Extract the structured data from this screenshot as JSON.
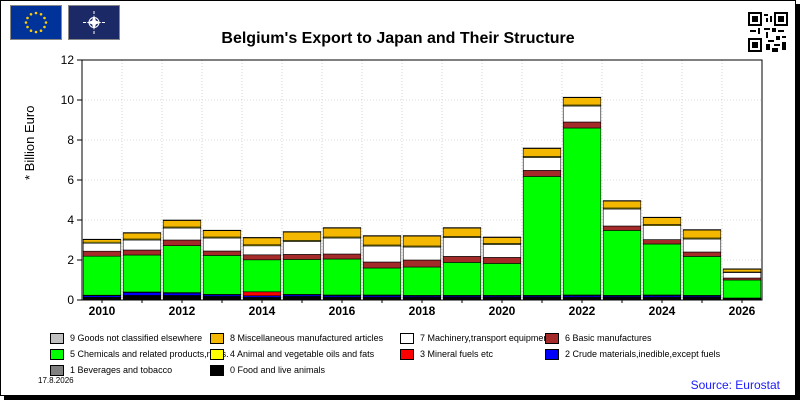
{
  "header": {
    "title": "Belgium's Export to Japan and Their Structure",
    "source": "Source: Eurostat",
    "date": "17.8.2026"
  },
  "colors": {
    "frame": "#000000",
    "eu_flag": "#003399",
    "nato_flag": "#1b2a66",
    "source_text": "#1a1aff"
  },
  "chart_data": {
    "type": "bar",
    "stacked": true,
    "title": "Belgium's Export to Japan and Their Structure",
    "ylabel": "* Billion Euro",
    "xlabel": "",
    "ylim": [
      0,
      12
    ],
    "yticks": [
      0,
      2,
      4,
      6,
      8,
      10,
      12
    ],
    "grid": true,
    "legend_position": "bottom",
    "categories": [
      "2010",
      "2011",
      "2012",
      "2013",
      "2014",
      "2015",
      "2016",
      "2017",
      "2018",
      "2019",
      "2020",
      "2021",
      "2022",
      "2023",
      "2024",
      "2025",
      "2026"
    ],
    "xtick_labels": [
      "2010",
      "",
      "2012",
      "",
      "2014",
      "",
      "2016",
      "",
      "2018",
      "",
      "2020",
      "",
      "2022",
      "",
      "2024",
      "",
      "2026"
    ],
    "series": [
      {
        "name": "0 Food and live animals",
        "color": "#000000",
        "values": [
          0.12,
          0.2,
          0.2,
          0.15,
          0.1,
          0.15,
          0.12,
          0.12,
          0.12,
          0.12,
          0.12,
          0.12,
          0.12,
          0.12,
          0.12,
          0.12,
          0.06
        ]
      },
      {
        "name": "1 Beverages and tobacco",
        "color": "#808080",
        "values": [
          0.02,
          0.03,
          0.03,
          0.03,
          0.03,
          0.03,
          0.03,
          0.03,
          0.03,
          0.03,
          0.03,
          0.03,
          0.03,
          0.03,
          0.03,
          0.03,
          0.01
        ]
      },
      {
        "name": "2 Crude materials,inedible,except fuels",
        "color": "#0000ff",
        "values": [
          0.08,
          0.15,
          0.12,
          0.08,
          0.08,
          0.08,
          0.08,
          0.08,
          0.06,
          0.06,
          0.06,
          0.06,
          0.08,
          0.06,
          0.08,
          0.06,
          0.02
        ]
      },
      {
        "name": "3 Mineral fuels etc",
        "color": "#ff0000",
        "values": [
          0.02,
          0.02,
          0.02,
          0.02,
          0.2,
          0.02,
          0.02,
          0.02,
          0.02,
          0.02,
          0.02,
          0.02,
          0.02,
          0.02,
          0.02,
          0.02,
          0.01
        ]
      },
      {
        "name": "5 Chemicals and related products,n.e.s.",
        "color": "#00ff00",
        "values": [
          1.95,
          1.85,
          2.35,
          1.95,
          1.6,
          1.75,
          1.8,
          1.35,
          1.42,
          1.65,
          1.6,
          5.95,
          8.35,
          3.25,
          2.55,
          1.95,
          0.9
        ]
      },
      {
        "name": "6 Basic manufactures",
        "color": "#a52a2a",
        "values": [
          0.25,
          0.25,
          0.28,
          0.22,
          0.25,
          0.25,
          0.25,
          0.3,
          0.35,
          0.3,
          0.3,
          0.3,
          0.3,
          0.22,
          0.22,
          0.22,
          0.1
        ]
      },
      {
        "name": "7 Machinery,transport equipment",
        "color": "#ffffff",
        "values": [
          0.4,
          0.5,
          0.6,
          0.65,
          0.45,
          0.65,
          0.8,
          0.8,
          0.65,
          0.95,
          0.65,
          0.65,
          0.8,
          0.85,
          0.7,
          0.65,
          0.28
        ]
      },
      {
        "name": "4 Animal and vegetable oils and fats",
        "color": "#ffff00",
        "values": [
          0.05,
          0.05,
          0.05,
          0.05,
          0.05,
          0.05,
          0.05,
          0.05,
          0.05,
          0.05,
          0.05,
          0.05,
          0.05,
          0.05,
          0.05,
          0.05,
          0.02
        ]
      },
      {
        "name": "8 Miscellaneous manufactured articles",
        "color": "#f5b800",
        "values": [
          0.13,
          0.3,
          0.33,
          0.32,
          0.35,
          0.42,
          0.45,
          0.45,
          0.5,
          0.42,
          0.3,
          0.4,
          0.37,
          0.35,
          0.35,
          0.4,
          0.15
        ]
      },
      {
        "name": "9 Goods not classified elsewhere",
        "color": "#c0c0c0",
        "values": [
          0.02,
          0.02,
          0.02,
          0.02,
          0.02,
          0.02,
          0.02,
          0.02,
          0.02,
          0.02,
          0.02,
          0.02,
          0.02,
          0.02,
          0.02,
          0.02,
          0.01
        ]
      }
    ]
  },
  "legend": {
    "items": [
      {
        "label": "9 Goods not classified elsewhere",
        "color": "#c0c0c0"
      },
      {
        "label": "8 Miscellaneous manufactured articles",
        "color": "#f5b800"
      },
      {
        "label": "7 Machinery,transport equipment",
        "color": "#ffffff"
      },
      {
        "label": "6 Basic manufactures",
        "color": "#a52a2a"
      },
      {
        "label": "5 Chemicals and related products,n.e.s.",
        "color": "#00ff00"
      },
      {
        "label": "4 Animal and vegetable oils and fats",
        "color": "#ffff00"
      },
      {
        "label": "3 Mineral fuels etc",
        "color": "#ff0000"
      },
      {
        "label": "2 Crude materials,inedible,except fuels",
        "color": "#0000ff"
      },
      {
        "label": "1 Beverages and tobacco",
        "color": "#808080"
      },
      {
        "label": "0 Food and live animals",
        "color": "#000000"
      }
    ]
  },
  "icons": {
    "eu_flag": "eu-flag-icon",
    "nato_flag": "nato-flag-icon",
    "qr_code": "qr-code-icon"
  }
}
